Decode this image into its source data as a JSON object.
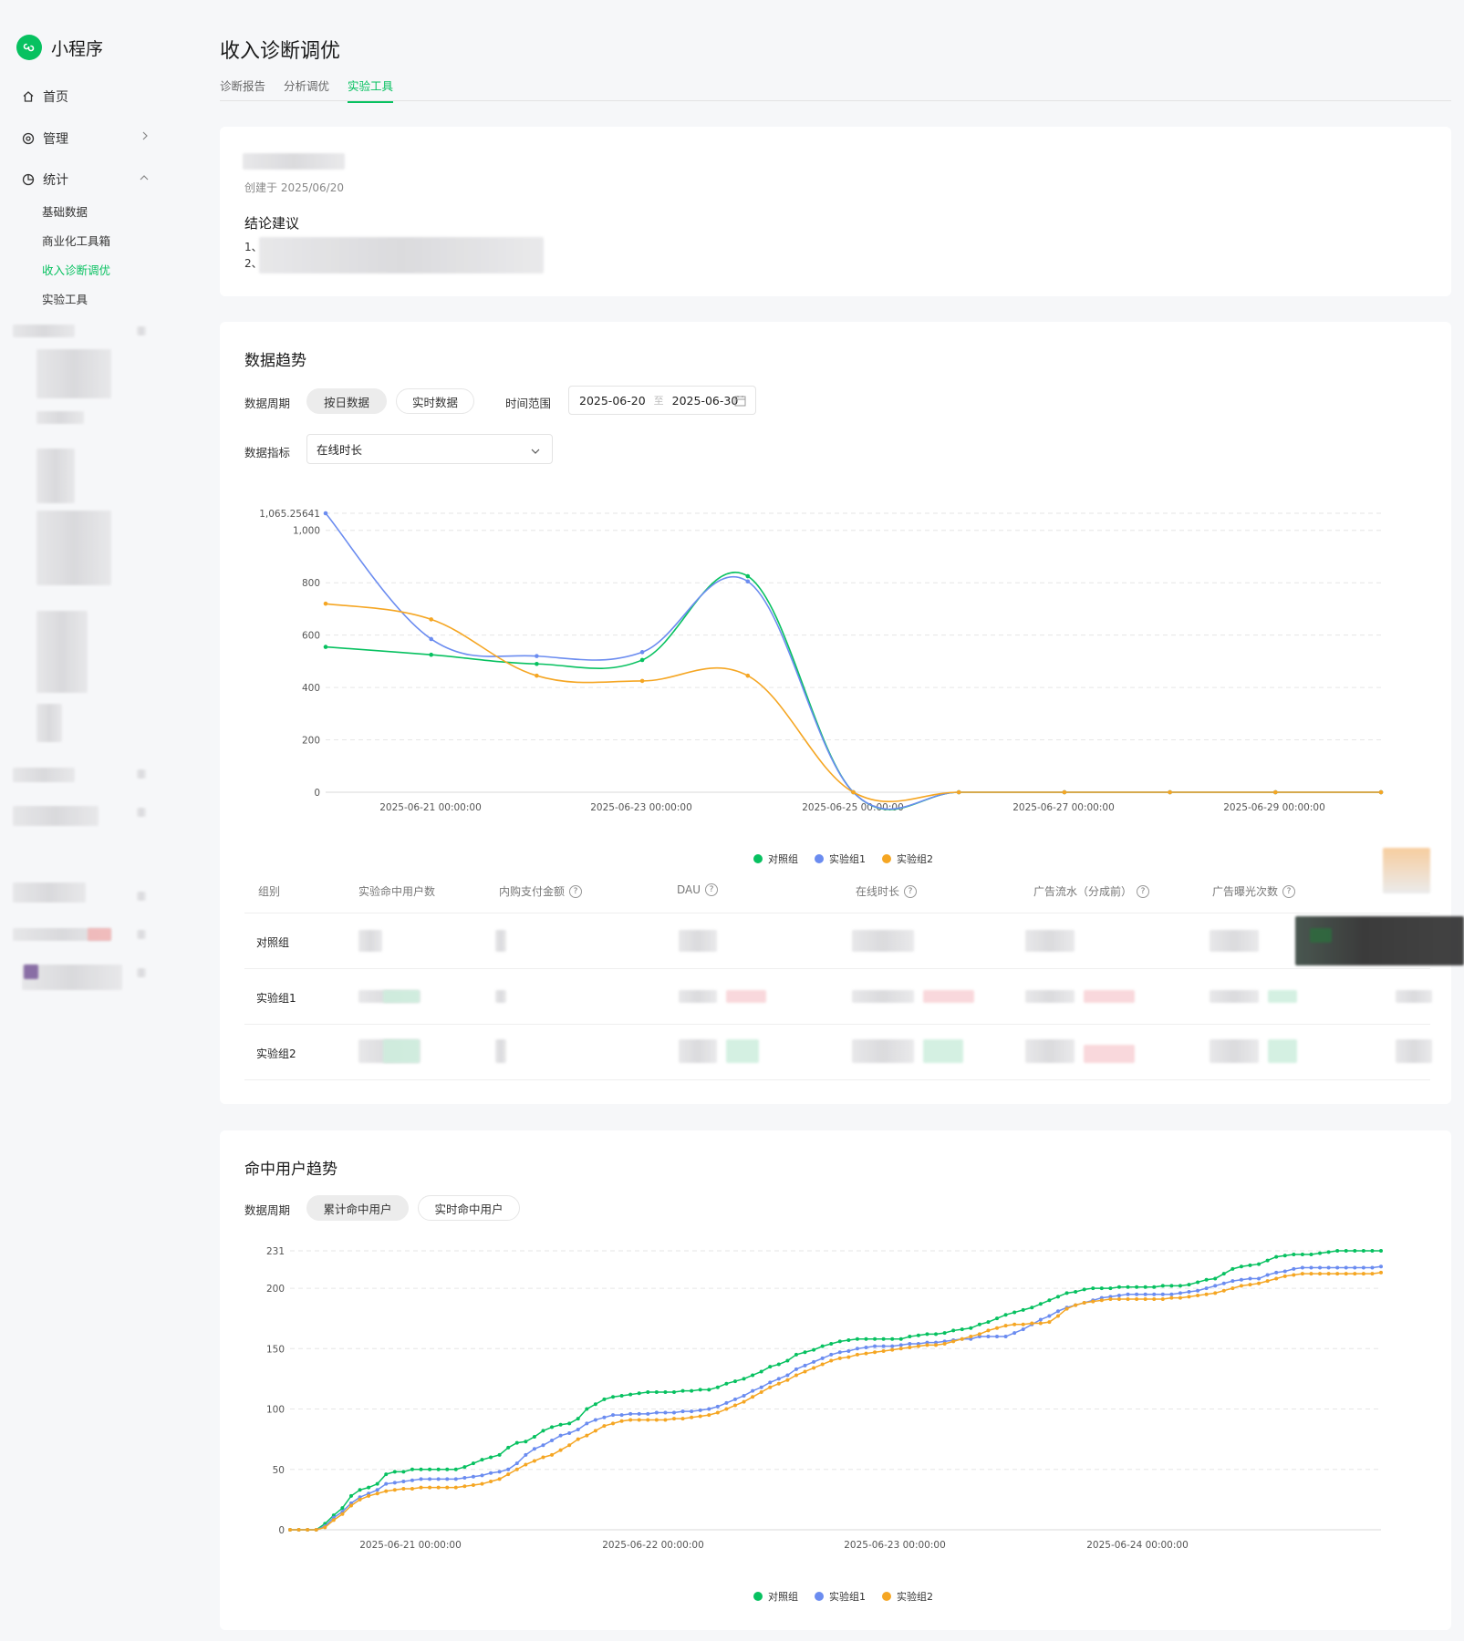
{
  "app": {
    "name": "小程序",
    "accent": "#07c160"
  },
  "sidebar": {
    "items": [
      {
        "label": "首页",
        "icon": "home-icon"
      },
      {
        "label": "管理",
        "icon": "gear-icon"
      },
      {
        "label": "统计",
        "icon": "chart-pie-icon"
      }
    ],
    "stats_sub": [
      "基础数据",
      "商业化工具箱",
      "收入诊断调优",
      "实验工具"
    ],
    "active_sub": "收入诊断调优"
  },
  "header": {
    "title": "收入诊断调优",
    "tabs": [
      "诊断报告",
      "分析调优",
      "实验工具"
    ],
    "active_tab": "实验工具"
  },
  "experiment": {
    "created": "创建于 2025/06/20",
    "conclusion_title": "结论建议",
    "lines": [
      "1、",
      "2、"
    ]
  },
  "trend": {
    "title": "数据趋势",
    "period_label": "数据周期",
    "period_options": [
      "按日数据",
      "实时数据"
    ],
    "range_label": "时间范围",
    "date_start": "2025-06-20",
    "date_sep": "至",
    "date_end": "2025-06-30",
    "metric_label": "数据指标",
    "metric_value": "在线时长"
  },
  "legend": [
    "对照组",
    "实验组1",
    "实验组2"
  ],
  "series_colors": {
    "control": "#07c160",
    "exp1": "#6b8cf0",
    "exp2": "#f5a623"
  },
  "table": {
    "headers": [
      "组别",
      "实验命中用户数",
      "内购支付金额",
      "DAU",
      "在线时长",
      "广告流水（分成前）",
      "广告曝光次数"
    ],
    "rows": [
      "对照组",
      "实验组1",
      "实验组2"
    ]
  },
  "hits": {
    "title": "命中用户趋势",
    "period_label": "数据周期",
    "period_options": [
      "累计命中用户",
      "实时命中用户"
    ]
  },
  "chart_data": [
    {
      "type": "line",
      "title": "",
      "x": [
        "2025-06-20",
        "2025-06-21",
        "2025-06-22",
        "2025-06-23",
        "2025-06-24",
        "2025-06-25",
        "2025-06-26",
        "2025-06-27",
        "2025-06-28",
        "2025-06-29",
        "2025-06-30"
      ],
      "x_tick_labels": [
        "2025-06-21 00:00:00",
        "2025-06-23 00:00:00",
        "2025-06-25 00:00:00",
        "2025-06-27 00:00:00",
        "2025-06-29 00:00:00"
      ],
      "y_tick_labels": [
        "1,065.25641",
        "1,000",
        "800",
        "600",
        "400",
        "200",
        "0"
      ],
      "ylim": [
        0,
        1065.25641
      ],
      "series": [
        {
          "name": "对照组",
          "values": [
            555,
            525,
            490,
            505,
            825,
            0,
            0,
            0,
            0,
            0,
            0
          ]
        },
        {
          "name": "实验组1",
          "values": [
            1065.25641,
            585,
            520,
            535,
            805,
            0,
            0,
            0,
            0,
            0,
            0
          ]
        },
        {
          "name": "实验组2",
          "values": [
            720,
            660,
            445,
            425,
            445,
            0,
            0,
            0,
            0,
            0,
            0
          ]
        }
      ],
      "grid": true,
      "legend": "bottom"
    },
    {
      "type": "line",
      "title": "",
      "x_range": [
        "2025-06-20 18:00",
        "2025-06-24 23:00"
      ],
      "x_tick_labels": [
        "2025-06-21 00:00:00",
        "2025-06-22 00:00:00",
        "2025-06-23 00:00:00",
        "2025-06-24 00:00:00"
      ],
      "y_tick_labels": [
        "231",
        "200",
        "150",
        "100",
        "50",
        "0"
      ],
      "ylim": [
        0,
        231
      ],
      "series": [
        {
          "name": "对照组",
          "values": [
            0,
            0,
            0,
            0,
            5,
            12,
            18,
            28,
            33,
            35,
            38,
            46,
            48,
            48,
            50,
            50,
            50,
            50,
            50,
            50,
            52,
            55,
            58,
            60,
            62,
            68,
            72,
            73,
            77,
            82,
            85,
            87,
            88,
            92,
            100,
            104,
            108,
            110,
            111,
            112,
            113,
            114,
            114,
            114,
            114,
            115,
            115,
            116,
            116,
            118,
            121,
            123,
            125,
            128,
            131,
            135,
            137,
            140,
            145,
            147,
            149,
            152,
            154,
            156,
            157,
            158,
            158,
            158,
            158,
            158,
            158,
            160,
            161,
            162,
            162,
            163,
            165,
            166,
            167,
            170,
            172,
            175,
            178,
            180,
            182,
            184,
            187,
            190,
            193,
            196,
            197,
            199,
            200,
            200,
            200,
            201,
            201,
            201,
            201,
            201,
            202,
            202,
            202,
            203,
            205,
            207,
            208,
            212,
            216,
            218,
            219,
            220,
            223,
            226,
            227,
            228,
            228,
            228,
            229,
            230,
            231,
            231,
            231,
            231,
            231,
            231
          ]
        },
        {
          "name": "实验组1",
          "values": [
            0,
            0,
            0,
            0,
            3,
            10,
            15,
            22,
            27,
            30,
            33,
            38,
            39,
            40,
            41,
            42,
            42,
            42,
            42,
            42,
            43,
            44,
            45,
            47,
            48,
            50,
            55,
            62,
            67,
            70,
            74,
            78,
            80,
            83,
            88,
            91,
            93,
            95,
            95,
            96,
            96,
            96,
            97,
            97,
            97,
            98,
            98,
            99,
            100,
            102,
            105,
            108,
            111,
            115,
            118,
            122,
            125,
            128,
            133,
            136,
            139,
            142,
            145,
            147,
            148,
            150,
            151,
            152,
            152,
            152,
            153,
            154,
            154,
            155,
            155,
            156,
            157,
            158,
            158,
            160,
            160,
            160,
            160,
            163,
            166,
            170,
            174,
            177,
            181,
            184,
            186,
            188,
            190,
            192,
            193,
            194,
            195,
            195,
            195,
            195,
            195,
            195,
            196,
            197,
            198,
            200,
            202,
            204,
            206,
            207,
            208,
            208,
            211,
            213,
            214,
            216,
            217,
            217,
            217,
            217,
            217,
            217,
            217,
            217,
            217,
            218
          ]
        },
        {
          "name": "实验组2",
          "values": [
            0,
            0,
            0,
            0,
            2,
            8,
            13,
            20,
            25,
            28,
            30,
            32,
            33,
            34,
            34,
            35,
            35,
            35,
            35,
            35,
            36,
            37,
            38,
            40,
            42,
            46,
            50,
            54,
            57,
            60,
            62,
            66,
            70,
            75,
            78,
            82,
            86,
            88,
            90,
            91,
            91,
            91,
            91,
            91,
            92,
            92,
            93,
            94,
            95,
            97,
            100,
            103,
            106,
            110,
            114,
            118,
            121,
            124,
            128,
            131,
            134,
            137,
            140,
            142,
            143,
            145,
            146,
            147,
            148,
            149,
            150,
            151,
            152,
            153,
            153,
            154,
            156,
            158,
            160,
            162,
            165,
            167,
            169,
            170,
            170,
            171,
            171,
            172,
            177,
            183,
            186,
            188,
            189,
            190,
            191,
            191,
            191,
            191,
            191,
            191,
            191,
            192,
            192,
            193,
            194,
            195,
            196,
            198,
            200,
            202,
            203,
            204,
            206,
            208,
            210,
            211,
            212,
            212,
            212,
            212,
            212,
            212,
            212,
            212,
            212,
            213
          ]
        }
      ],
      "grid": true,
      "legend": "bottom"
    }
  ]
}
